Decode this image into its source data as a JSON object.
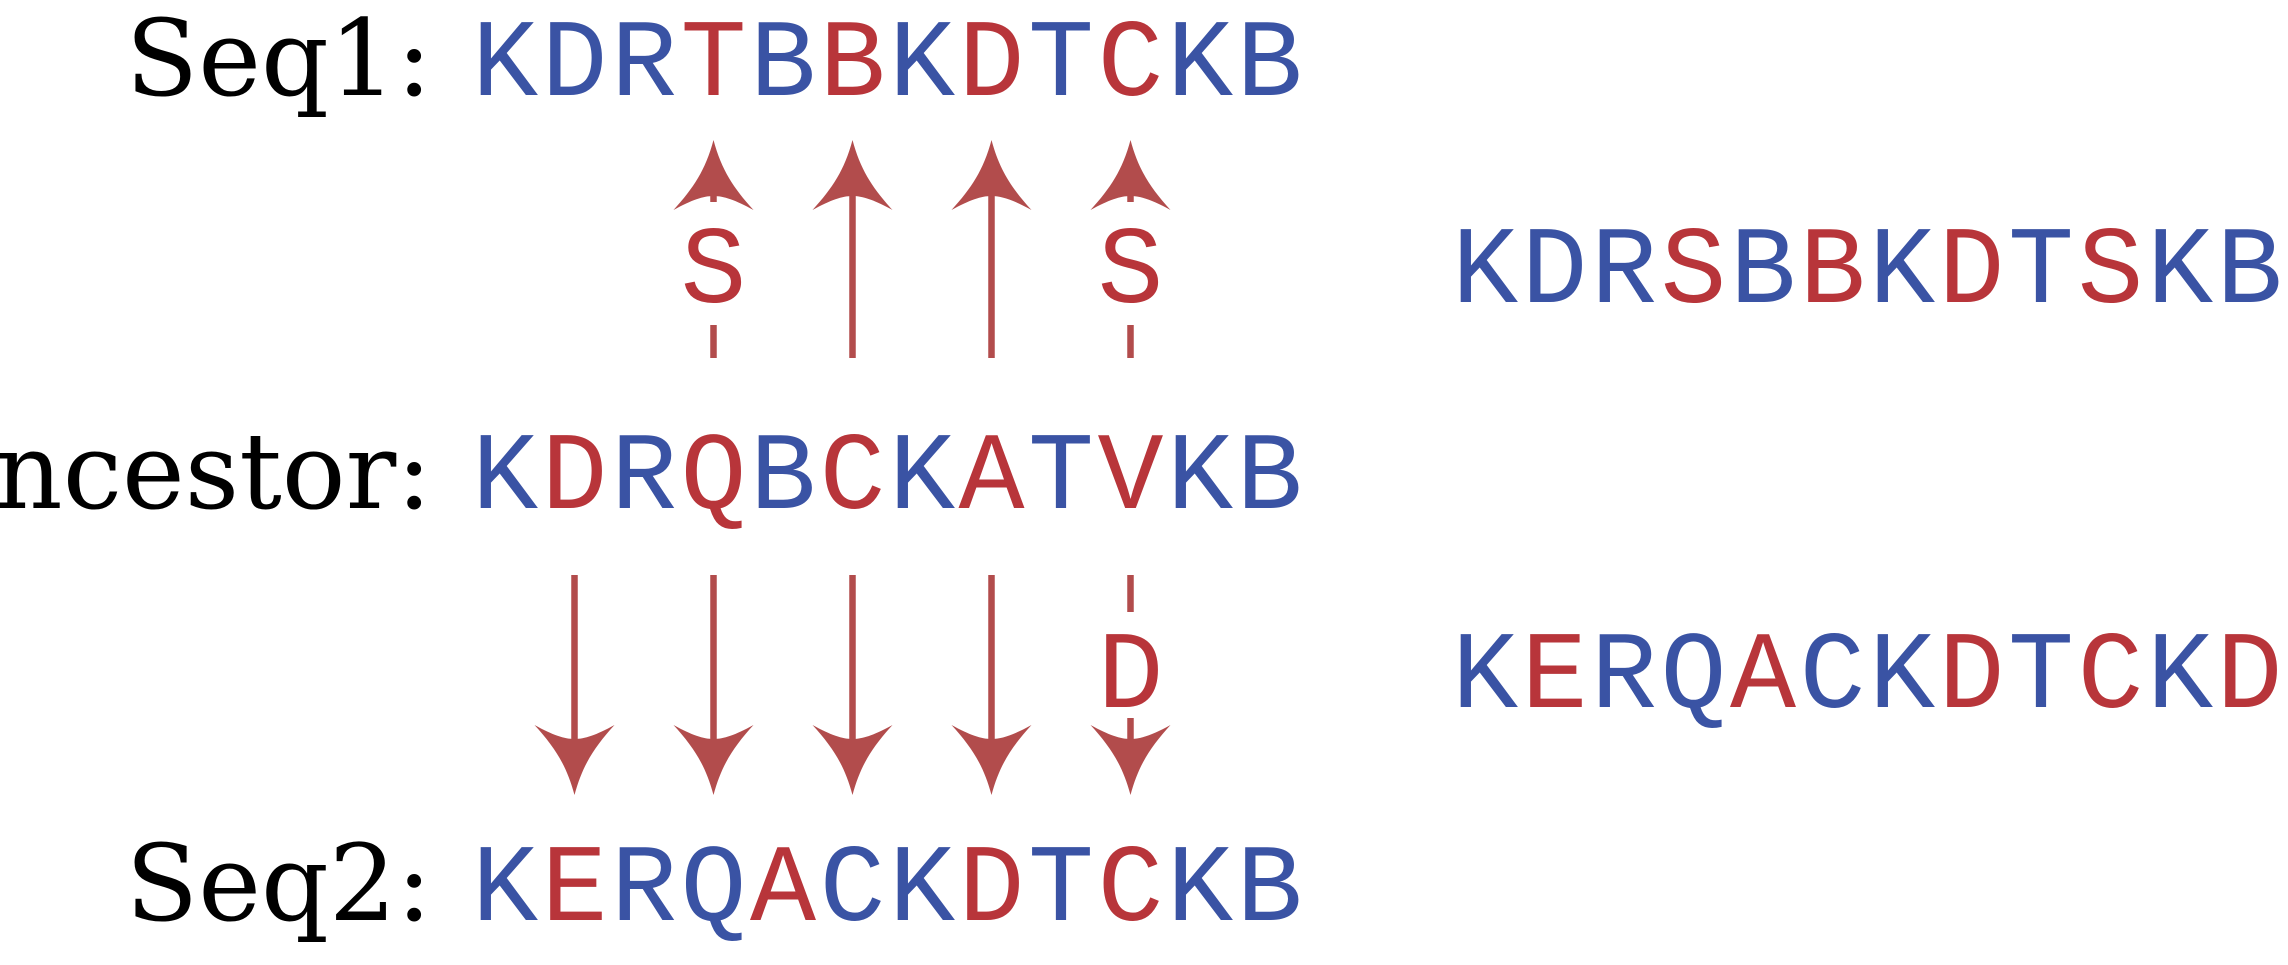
{
  "colors": {
    "conserved": "#3a53a4",
    "changed": "#b8353a",
    "arrow": "#b24c4c",
    "label": "#000000"
  },
  "labels": {
    "seq1": "Seq1:",
    "ancestor": "Ancestor:",
    "seq2": "Seq2:"
  },
  "sequences": {
    "seq1": {
      "letters": [
        "K",
        "D",
        "R",
        "T",
        "B",
        "B",
        "K",
        "D",
        "T",
        "C",
        "K",
        "B"
      ],
      "changed": [
        false,
        false,
        false,
        true,
        false,
        true,
        false,
        true,
        false,
        true,
        false,
        false
      ]
    },
    "ancestor": {
      "letters": [
        "K",
        "D",
        "R",
        "Q",
        "B",
        "C",
        "K",
        "A",
        "T",
        "V",
        "K",
        "B"
      ],
      "changed": [
        false,
        true,
        false,
        true,
        false,
        true,
        false,
        true,
        false,
        true,
        false,
        false
      ]
    },
    "seq2": {
      "letters": [
        "K",
        "E",
        "R",
        "Q",
        "A",
        "C",
        "K",
        "D",
        "T",
        "C",
        "K",
        "B"
      ],
      "changed": [
        false,
        true,
        false,
        false,
        true,
        false,
        false,
        true,
        false,
        true,
        false,
        false
      ]
    },
    "right1": {
      "letters": [
        "K",
        "D",
        "R",
        "S",
        "B",
        "B",
        "K",
        "D",
        "T",
        "S",
        "K",
        "B"
      ],
      "changed": [
        false,
        false,
        false,
        true,
        false,
        true,
        false,
        true,
        false,
        true,
        false,
        false
      ]
    },
    "right2": {
      "letters": [
        "K",
        "E",
        "R",
        "Q",
        "A",
        "C",
        "K",
        "D",
        "T",
        "C",
        "K",
        "D"
      ],
      "changed": [
        false,
        true,
        false,
        false,
        true,
        false,
        false,
        true,
        false,
        true,
        false,
        true
      ]
    }
  },
  "arrows_up": [
    {
      "position": 4,
      "style": "dashed",
      "label": "S"
    },
    {
      "position": 6,
      "style": "solid",
      "label": ""
    },
    {
      "position": 8,
      "style": "solid",
      "label": ""
    },
    {
      "position": 10,
      "style": "dashed",
      "label": "S"
    }
  ],
  "arrows_down": [
    {
      "position": 2,
      "style": "solid",
      "label": ""
    },
    {
      "position": 4,
      "style": "solid",
      "label": ""
    },
    {
      "position": 6,
      "style": "solid",
      "label": ""
    },
    {
      "position": 8,
      "style": "solid",
      "label": ""
    },
    {
      "position": 10,
      "style": "dashed",
      "label": "D"
    }
  ]
}
